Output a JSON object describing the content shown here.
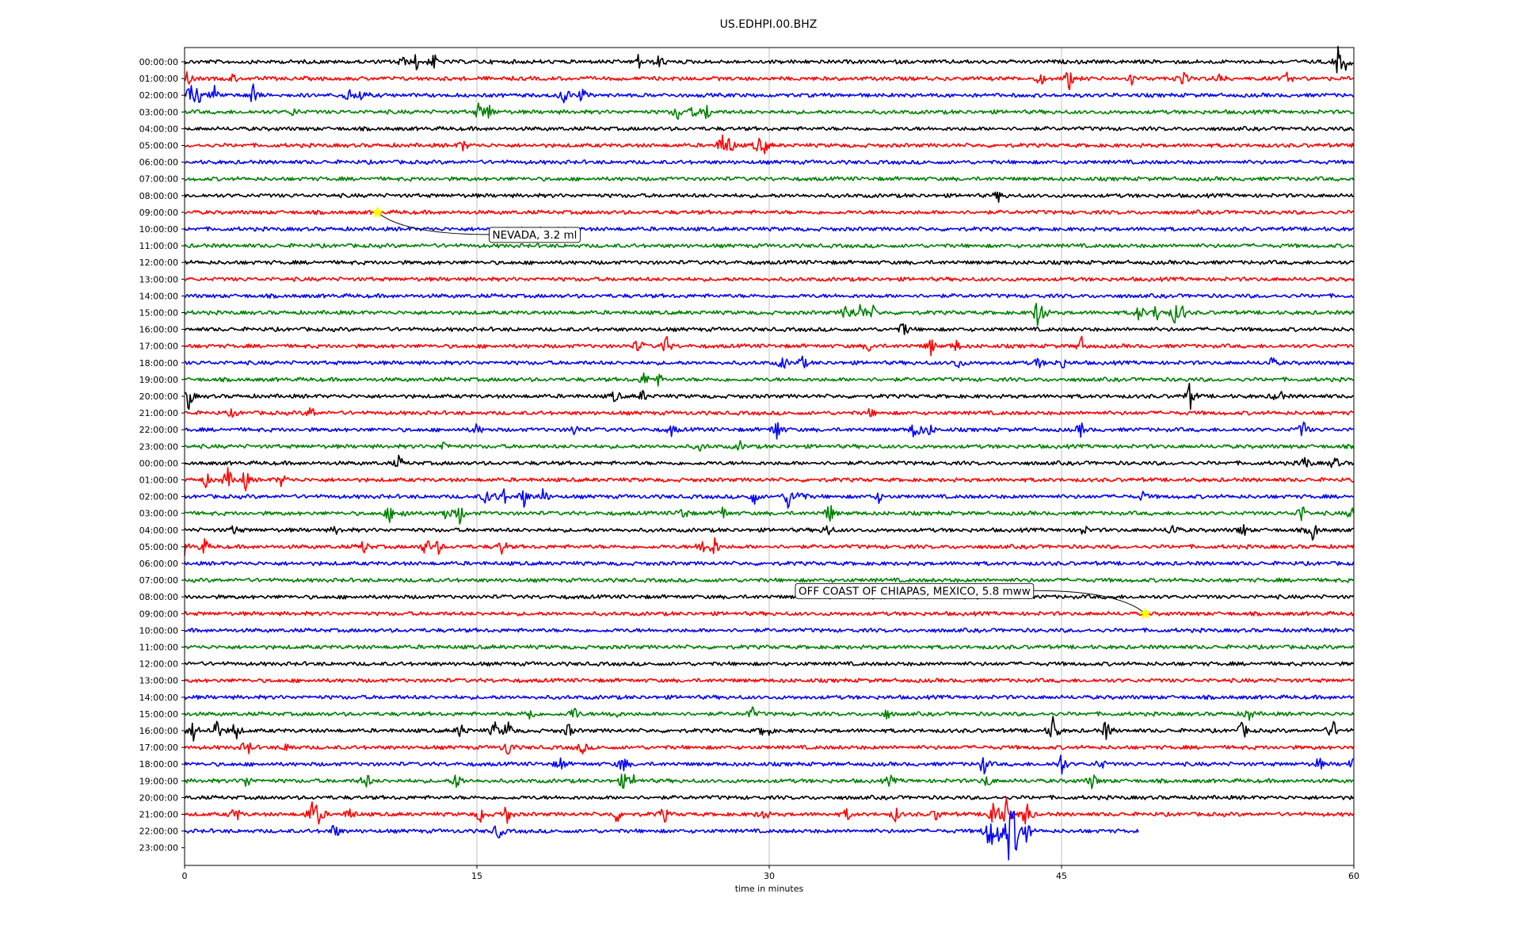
{
  "chart_data": {
    "type": "line",
    "title": "US.EDHPI.00.BHZ",
    "xlabel": "time in minutes",
    "ylabel": "",
    "xlim": [
      0,
      60
    ],
    "x_ticks": [
      "0",
      "15",
      "30",
      "45",
      "60"
    ],
    "x_tick_values": [
      0,
      15,
      30,
      45,
      60
    ],
    "grid": "vertical",
    "trace_colors": [
      "#000000",
      "#ff0000",
      "#0000ff",
      "#008000"
    ],
    "rows": [
      {
        "label": "00:00:00",
        "events": [
          [
            11.1,
            0.5
          ],
          [
            11.9,
            0.6
          ],
          [
            12.8,
            0.55
          ],
          [
            23.3,
            0.5
          ],
          [
            24.4,
            0.55
          ],
          [
            59.2,
            1.0
          ],
          [
            59.6,
            0.5
          ]
        ]
      },
      {
        "label": "01:00:00",
        "events": [
          [
            0.1,
            0.7
          ],
          [
            2.5,
            0.3
          ],
          [
            43.9,
            0.5
          ],
          [
            45.4,
            0.8
          ],
          [
            48.6,
            0.4
          ],
          [
            51.2,
            0.6
          ],
          [
            53.1,
            0.4
          ],
          [
            56.6,
            0.4
          ]
        ]
      },
      {
        "label": "02:00:00",
        "events": [
          [
            0.3,
            0.8
          ],
          [
            0.7,
            0.6
          ],
          [
            1.6,
            0.9
          ],
          [
            3.5,
            0.8
          ],
          [
            8.4,
            0.6
          ],
          [
            9.1,
            0.45
          ],
          [
            19.5,
            0.8
          ],
          [
            20.4,
            0.5
          ]
        ]
      },
      {
        "label": "03:00:00",
        "events": [
          [
            5.6,
            0.3
          ],
          [
            15.1,
            0.55
          ],
          [
            15.6,
            0.7
          ],
          [
            25.3,
            0.6
          ],
          [
            26.1,
            0.4
          ],
          [
            26.8,
            0.7
          ]
        ]
      },
      {
        "label": "04:00:00",
        "events": []
      },
      {
        "label": "05:00:00",
        "events": [
          [
            14.3,
            0.4
          ],
          [
            27.6,
            0.9
          ],
          [
            28.0,
            0.6
          ],
          [
            29.4,
            0.6
          ],
          [
            29.8,
            0.5
          ]
        ]
      },
      {
        "label": "06:00:00",
        "events": []
      },
      {
        "label": "07:00:00",
        "events": []
      },
      {
        "label": "08:00:00",
        "events": [
          [
            41.8,
            0.4
          ]
        ]
      },
      {
        "label": "09:00:00",
        "events": []
      },
      {
        "label": "10:00:00",
        "events": []
      },
      {
        "label": "11:00:00",
        "events": []
      },
      {
        "label": "12:00:00",
        "events": []
      },
      {
        "label": "13:00:00",
        "events": []
      },
      {
        "label": "14:00:00",
        "events": []
      },
      {
        "label": "15:00:00",
        "events": [
          [
            34.0,
            0.9
          ],
          [
            34.7,
            0.7
          ],
          [
            35.3,
            0.5
          ],
          [
            43.8,
            1.0
          ],
          [
            44.0,
            0.7
          ],
          [
            49.0,
            0.7
          ],
          [
            49.9,
            0.7
          ],
          [
            50.8,
            0.7
          ],
          [
            51.2,
            0.5
          ]
        ]
      },
      {
        "label": "16:00:00",
        "events": [
          [
            36.9,
            0.6
          ]
        ]
      },
      {
        "label": "17:00:00",
        "events": [
          [
            23.3,
            0.6
          ],
          [
            24.7,
            0.8
          ],
          [
            35.2,
            0.5
          ],
          [
            38.3,
            0.6
          ],
          [
            39.6,
            0.4
          ],
          [
            46.0,
            0.7
          ]
        ]
      },
      {
        "label": "18:00:00",
        "events": [
          [
            30.7,
            0.5
          ],
          [
            31.7,
            0.5
          ],
          [
            39.7,
            0.45
          ],
          [
            43.8,
            0.4
          ],
          [
            45.0,
            0.5
          ],
          [
            55.8,
            0.4
          ]
        ]
      },
      {
        "label": "19:00:00",
        "events": [
          [
            23.6,
            0.5
          ],
          [
            24.3,
            0.45
          ]
        ]
      },
      {
        "label": "20:00:00",
        "events": [
          [
            0.2,
            1.0
          ],
          [
            22.1,
            0.5
          ],
          [
            23.5,
            0.4
          ],
          [
            51.6,
            1.0
          ],
          [
            56.1,
            0.7
          ]
        ]
      },
      {
        "label": "21:00:00",
        "events": [
          [
            2.5,
            0.3
          ],
          [
            6.5,
            0.5
          ],
          [
            35.2,
            0.3
          ]
        ]
      },
      {
        "label": "22:00:00",
        "events": [
          [
            15.0,
            0.4
          ],
          [
            20.0,
            0.45
          ],
          [
            25.0,
            0.4
          ],
          [
            30.4,
            0.9
          ],
          [
            37.5,
            0.9
          ],
          [
            38.2,
            0.5
          ],
          [
            46.0,
            0.5
          ],
          [
            57.4,
            0.7
          ]
        ]
      },
      {
        "label": "23:00:00",
        "events": [
          [
            13.3,
            0.4
          ],
          [
            26.5,
            0.3
          ],
          [
            28.5,
            0.3
          ]
        ]
      },
      {
        "label": "00:00:00",
        "events": [
          [
            11.0,
            0.5
          ],
          [
            57.5,
            0.55
          ],
          [
            59.0,
            0.5
          ]
        ]
      },
      {
        "label": "01:00:00",
        "events": [
          [
            1.1,
            0.5
          ],
          [
            2.2,
            0.9
          ],
          [
            3.1,
            0.8
          ],
          [
            5.0,
            0.5
          ]
        ]
      },
      {
        "label": "02:00:00",
        "events": [
          [
            15.5,
            0.6
          ],
          [
            16.3,
            0.9
          ],
          [
            17.4,
            0.7
          ],
          [
            18.4,
            0.6
          ],
          [
            29.2,
            0.6
          ],
          [
            31.0,
            0.9
          ],
          [
            31.6,
            0.6
          ],
          [
            35.6,
            0.4
          ],
          [
            49.2,
            0.35
          ]
        ]
      },
      {
        "label": "03:00:00",
        "events": [
          [
            10.5,
            0.6
          ],
          [
            11.3,
            0.4
          ],
          [
            13.4,
            0.5
          ],
          [
            14.1,
            0.8
          ],
          [
            25.6,
            0.6
          ],
          [
            27.6,
            0.5
          ],
          [
            33.1,
            0.8
          ],
          [
            57.3,
            0.7
          ],
          [
            59.9,
            0.5
          ]
        ]
      },
      {
        "label": "04:00:00",
        "events": [
          [
            2.6,
            0.4
          ],
          [
            7.8,
            0.3
          ],
          [
            33.0,
            0.5
          ],
          [
            46.1,
            0.4
          ],
          [
            50.7,
            0.6
          ],
          [
            54.3,
            0.55
          ],
          [
            57.9,
            0.8
          ]
        ]
      },
      {
        "label": "05:00:00",
        "events": [
          [
            0.0,
            0.5
          ],
          [
            1.0,
            0.6
          ],
          [
            9.2,
            0.5
          ],
          [
            12.4,
            0.7
          ],
          [
            13.0,
            0.5
          ],
          [
            16.3,
            0.6
          ],
          [
            26.6,
            0.8
          ],
          [
            27.2,
            0.7
          ]
        ]
      },
      {
        "label": "06:00:00",
        "events": []
      },
      {
        "label": "07:00:00",
        "events": []
      },
      {
        "label": "08:00:00",
        "events": []
      },
      {
        "label": "09:00:00",
        "events": []
      },
      {
        "label": "10:00:00",
        "events": []
      },
      {
        "label": "11:00:00",
        "events": []
      },
      {
        "label": "12:00:00",
        "events": []
      },
      {
        "label": "13:00:00",
        "events": []
      },
      {
        "label": "14:00:00",
        "events": []
      },
      {
        "label": "15:00:00",
        "events": [
          [
            17.7,
            0.6
          ],
          [
            20.0,
            0.6
          ],
          [
            22.0,
            0.5
          ],
          [
            29.1,
            0.5
          ],
          [
            36.0,
            0.4
          ],
          [
            54.6,
            0.5
          ]
        ]
      },
      {
        "label": "16:00:00",
        "events": [
          [
            0.5,
            0.9
          ],
          [
            1.6,
            1.0
          ],
          [
            2.6,
            0.8
          ],
          [
            14.2,
            0.6
          ],
          [
            15.9,
            0.6
          ],
          [
            16.6,
            0.8
          ],
          [
            19.7,
            0.5
          ],
          [
            29.8,
            0.9
          ],
          [
            44.6,
            1.3
          ],
          [
            47.3,
            0.8
          ],
          [
            54.3,
            0.7
          ],
          [
            58.9,
            0.9
          ]
        ]
      },
      {
        "label": "17:00:00",
        "events": [
          [
            3.2,
            0.7
          ],
          [
            5.3,
            0.4
          ],
          [
            16.6,
            0.7
          ],
          [
            20.4,
            0.5
          ]
        ]
      },
      {
        "label": "18:00:00",
        "events": [
          [
            19.3,
            0.5
          ],
          [
            22.5,
            0.7
          ],
          [
            41.0,
            0.8
          ],
          [
            45.0,
            0.9
          ],
          [
            47.0,
            0.45
          ],
          [
            58.2,
            0.5
          ],
          [
            60.0,
            0.7
          ]
        ]
      },
      {
        "label": "19:00:00",
        "events": [
          [
            3.2,
            0.5
          ],
          [
            9.3,
            0.7
          ],
          [
            14.0,
            0.7
          ],
          [
            22.5,
            0.6
          ],
          [
            23.1,
            0.5
          ],
          [
            36.2,
            0.4
          ],
          [
            41.2,
            0.5
          ],
          [
            46.6,
            0.6
          ]
        ]
      },
      {
        "label": "20:00:00",
        "events": []
      },
      {
        "label": "21:00:00",
        "events": [
          [
            2.6,
            0.7
          ],
          [
            6.5,
            0.9
          ],
          [
            6.9,
            0.9
          ],
          [
            8.5,
            0.5
          ],
          [
            15.2,
            0.6
          ],
          [
            16.5,
            0.8
          ],
          [
            22.2,
            0.6
          ],
          [
            24.6,
            0.6
          ],
          [
            29.7,
            0.5
          ],
          [
            34.0,
            0.4
          ],
          [
            36.5,
            0.5
          ],
          [
            38.6,
            0.5
          ],
          [
            41.5,
            1.6
          ],
          [
            42.2,
            1.4
          ],
          [
            43.2,
            1.2
          ]
        ]
      },
      {
        "label": "22:00:00",
        "events": [
          [
            7.7,
            0.6
          ],
          [
            16.1,
            0.7
          ],
          [
            41.3,
            1.6
          ],
          [
            41.7,
            1.2
          ],
          [
            42.3,
            1.9
          ],
          [
            42.6,
            1.8
          ],
          [
            43.2,
            1.0
          ]
        ],
        "end_minute": 49.0
      },
      {
        "label": "23:00:00",
        "events": [],
        "empty": true
      }
    ],
    "annotations": [
      {
        "text": "NEVADA, 3.2 ml",
        "row": 9,
        "minute": 9.9,
        "marker": "star",
        "marker_color": "#ffff00"
      },
      {
        "text": "OFF COAST OF CHIAPAS, MEXICO, 5.8 mww",
        "row": 33,
        "minute": 49.3,
        "marker": "star",
        "marker_color": "#ffff00"
      }
    ]
  }
}
